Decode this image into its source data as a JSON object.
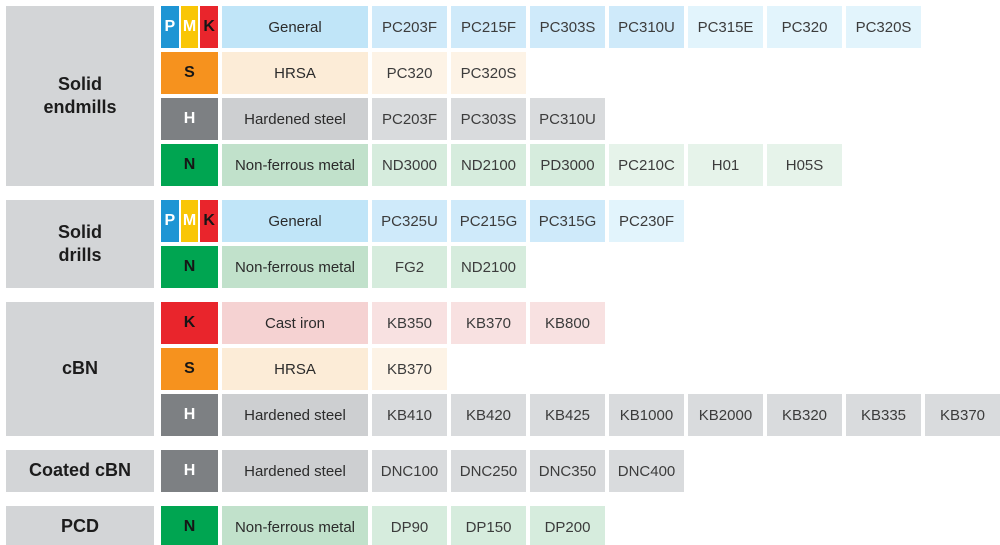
{
  "chart_data": {
    "type": "table",
    "groups": [
      {
        "category": "Solid\nendmills",
        "rows": [
          {
            "badges": [
              "P",
              "M",
              "K"
            ],
            "application": "General",
            "type": "general",
            "grades": [
              {
                "t": "PC203F"
              },
              {
                "t": "PC215F"
              },
              {
                "t": "PC303S"
              },
              {
                "t": "PC310U"
              },
              {
                "t": "PC315E",
                "light": true
              },
              {
                "t": "PC320",
                "light": true
              },
              {
                "t": "PC320S",
                "light": true
              }
            ]
          },
          {
            "badges": [
              "S"
            ],
            "application": "HRSA",
            "type": "hrsa",
            "grades": [
              {
                "t": "PC320"
              },
              {
                "t": "PC320S"
              }
            ]
          },
          {
            "badges": [
              "H"
            ],
            "application": "Hardened steel",
            "type": "hardened",
            "grades": [
              {
                "t": "PC203F"
              },
              {
                "t": "PC303S"
              },
              {
                "t": "PC310U"
              }
            ]
          },
          {
            "badges": [
              "N"
            ],
            "application": "Non-ferrous metal",
            "type": "nonferrous",
            "grades": [
              {
                "t": "ND3000"
              },
              {
                "t": "ND2100"
              },
              {
                "t": "PD3000"
              },
              {
                "t": "PC210C",
                "light": true
              },
              {
                "t": "H01",
                "light": true
              },
              {
                "t": "H05S",
                "light": true
              }
            ]
          }
        ]
      },
      {
        "category": "Solid\ndrills",
        "rows": [
          {
            "badges": [
              "P",
              "M",
              "K"
            ],
            "application": "General",
            "type": "general",
            "grades": [
              {
                "t": "PC325U"
              },
              {
                "t": "PC215G"
              },
              {
                "t": "PC315G"
              },
              {
                "t": "PC230F",
                "light": true
              }
            ]
          },
          {
            "badges": [
              "N"
            ],
            "application": "Non-ferrous metal",
            "type": "nonferrous",
            "grades": [
              {
                "t": "FG2"
              },
              {
                "t": "ND2100"
              }
            ]
          }
        ]
      },
      {
        "category": "cBN",
        "rows": [
          {
            "badges": [
              "K"
            ],
            "application": "Cast iron",
            "type": "castiron",
            "grades": [
              {
                "t": "KB350"
              },
              {
                "t": "KB370"
              },
              {
                "t": "KB800"
              }
            ]
          },
          {
            "badges": [
              "S"
            ],
            "application": "HRSA",
            "type": "hrsa",
            "grades": [
              {
                "t": "KB370"
              }
            ]
          },
          {
            "badges": [
              "H"
            ],
            "application": "Hardened steel",
            "type": "hardened",
            "grades": [
              {
                "t": "KB410"
              },
              {
                "t": "KB420"
              },
              {
                "t": "KB425"
              },
              {
                "t": "KB1000"
              },
              {
                "t": "KB2000"
              },
              {
                "t": "KB320"
              },
              {
                "t": "KB335"
              },
              {
                "t": "KB370"
              }
            ]
          }
        ]
      },
      {
        "category": "Coated cBN",
        "rows": [
          {
            "badges": [
              "H"
            ],
            "application": "Hardened steel",
            "type": "hardened",
            "grades": [
              {
                "t": "DNC100"
              },
              {
                "t": "DNC250"
              },
              {
                "t": "DNC350"
              },
              {
                "t": "DNC400"
              }
            ]
          }
        ]
      },
      {
        "category": "PCD",
        "rows": [
          {
            "badges": [
              "N"
            ],
            "application": "Non-ferrous metal",
            "type": "nonferrous",
            "grades": [
              {
                "t": "DP90"
              },
              {
                "t": "DP150"
              },
              {
                "t": "DP200"
              }
            ]
          }
        ]
      }
    ]
  },
  "row_styles": {
    "general": {
      "label_bg": "#c0e5f8",
      "cell_bg": "#cfeafa",
      "cell_bg_light": "#e2f4fc"
    },
    "hrsa": {
      "label_bg": "#fcecd7",
      "cell_bg": "#fdf3e6",
      "cell_bg_light": "#fdf3e6"
    },
    "hardened": {
      "label_bg": "#cdcfd1",
      "cell_bg": "#d9dbdd",
      "cell_bg_light": "#d9dbdd"
    },
    "nonferrous": {
      "label_bg": "#c1e1cb",
      "cell_bg": "#d6ecdd",
      "cell_bg_light": "#e6f3ea"
    },
    "castiron": {
      "label_bg": "#f5d2d2",
      "cell_bg": "#f8e1e1",
      "cell_bg_light": "#f8e1e1"
    }
  },
  "badge_colors": {
    "P": {
      "bg": "#1e95d4",
      "fg": "#ffffff"
    },
    "M": {
      "bg": "#f9c606",
      "fg": "#ffffff"
    },
    "K": {
      "bg": "#e9252c",
      "fg": "#161616"
    },
    "S": {
      "bg": "#f6921e",
      "fg": "#161616"
    },
    "H": {
      "bg": "#7d8083",
      "fg": "#ffffff"
    },
    "N": {
      "bg": "#00a551",
      "fg": "#161616"
    }
  }
}
